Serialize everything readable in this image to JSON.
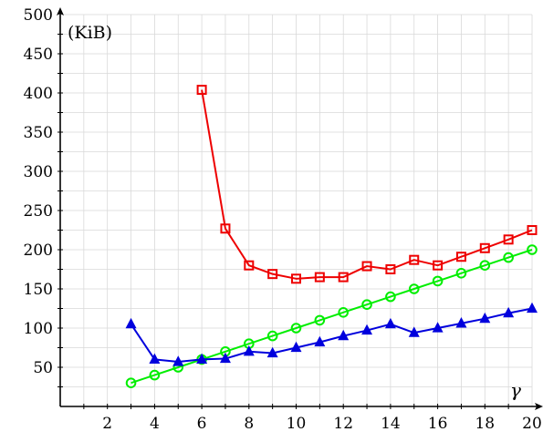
{
  "chart_data": {
    "type": "line",
    "title": "",
    "xlabel": "γ",
    "ylabel": "(KiB)",
    "xlim": [
      0,
      20
    ],
    "ylim": [
      0,
      500
    ],
    "x_ticks": [
      2,
      4,
      6,
      8,
      10,
      12,
      14,
      16,
      18,
      20
    ],
    "y_ticks": [
      50,
      100,
      150,
      200,
      250,
      300,
      350,
      400,
      450,
      500
    ],
    "x_minor_step": 1,
    "y_minor_step": 25,
    "grid": true,
    "legend": "none",
    "series": [
      {
        "color": "#ee0000",
        "marker": "square",
        "x": [
          6,
          7,
          8,
          9,
          10,
          11,
          12,
          13,
          14,
          15,
          16,
          17,
          18,
          19,
          20
        ],
        "y": [
          404,
          227,
          180,
          169,
          163,
          165,
          165,
          179,
          175,
          187,
          180,
          191,
          202,
          213,
          225
        ]
      },
      {
        "color": "#00ee00",
        "marker": "circle",
        "x": [
          3,
          4,
          5,
          6,
          7,
          8,
          9,
          10,
          11,
          12,
          13,
          14,
          15,
          16,
          17,
          18,
          19,
          20
        ],
        "y": [
          30,
          40,
          50,
          60,
          70,
          80,
          90,
          100,
          110,
          120,
          130,
          140,
          150,
          160,
          170,
          180,
          190,
          200
        ]
      },
      {
        "color": "#0000dd",
        "marker": "triangle",
        "x": [
          3,
          4,
          5,
          6,
          7,
          8,
          9,
          10,
          11,
          12,
          13,
          14,
          15,
          16,
          17,
          18,
          19,
          20
        ],
        "y": [
          105,
          60,
          57,
          60,
          61,
          70,
          68,
          75,
          82,
          90,
          97,
          105,
          94,
          100,
          106,
          112,
          119,
          125
        ]
      }
    ]
  }
}
